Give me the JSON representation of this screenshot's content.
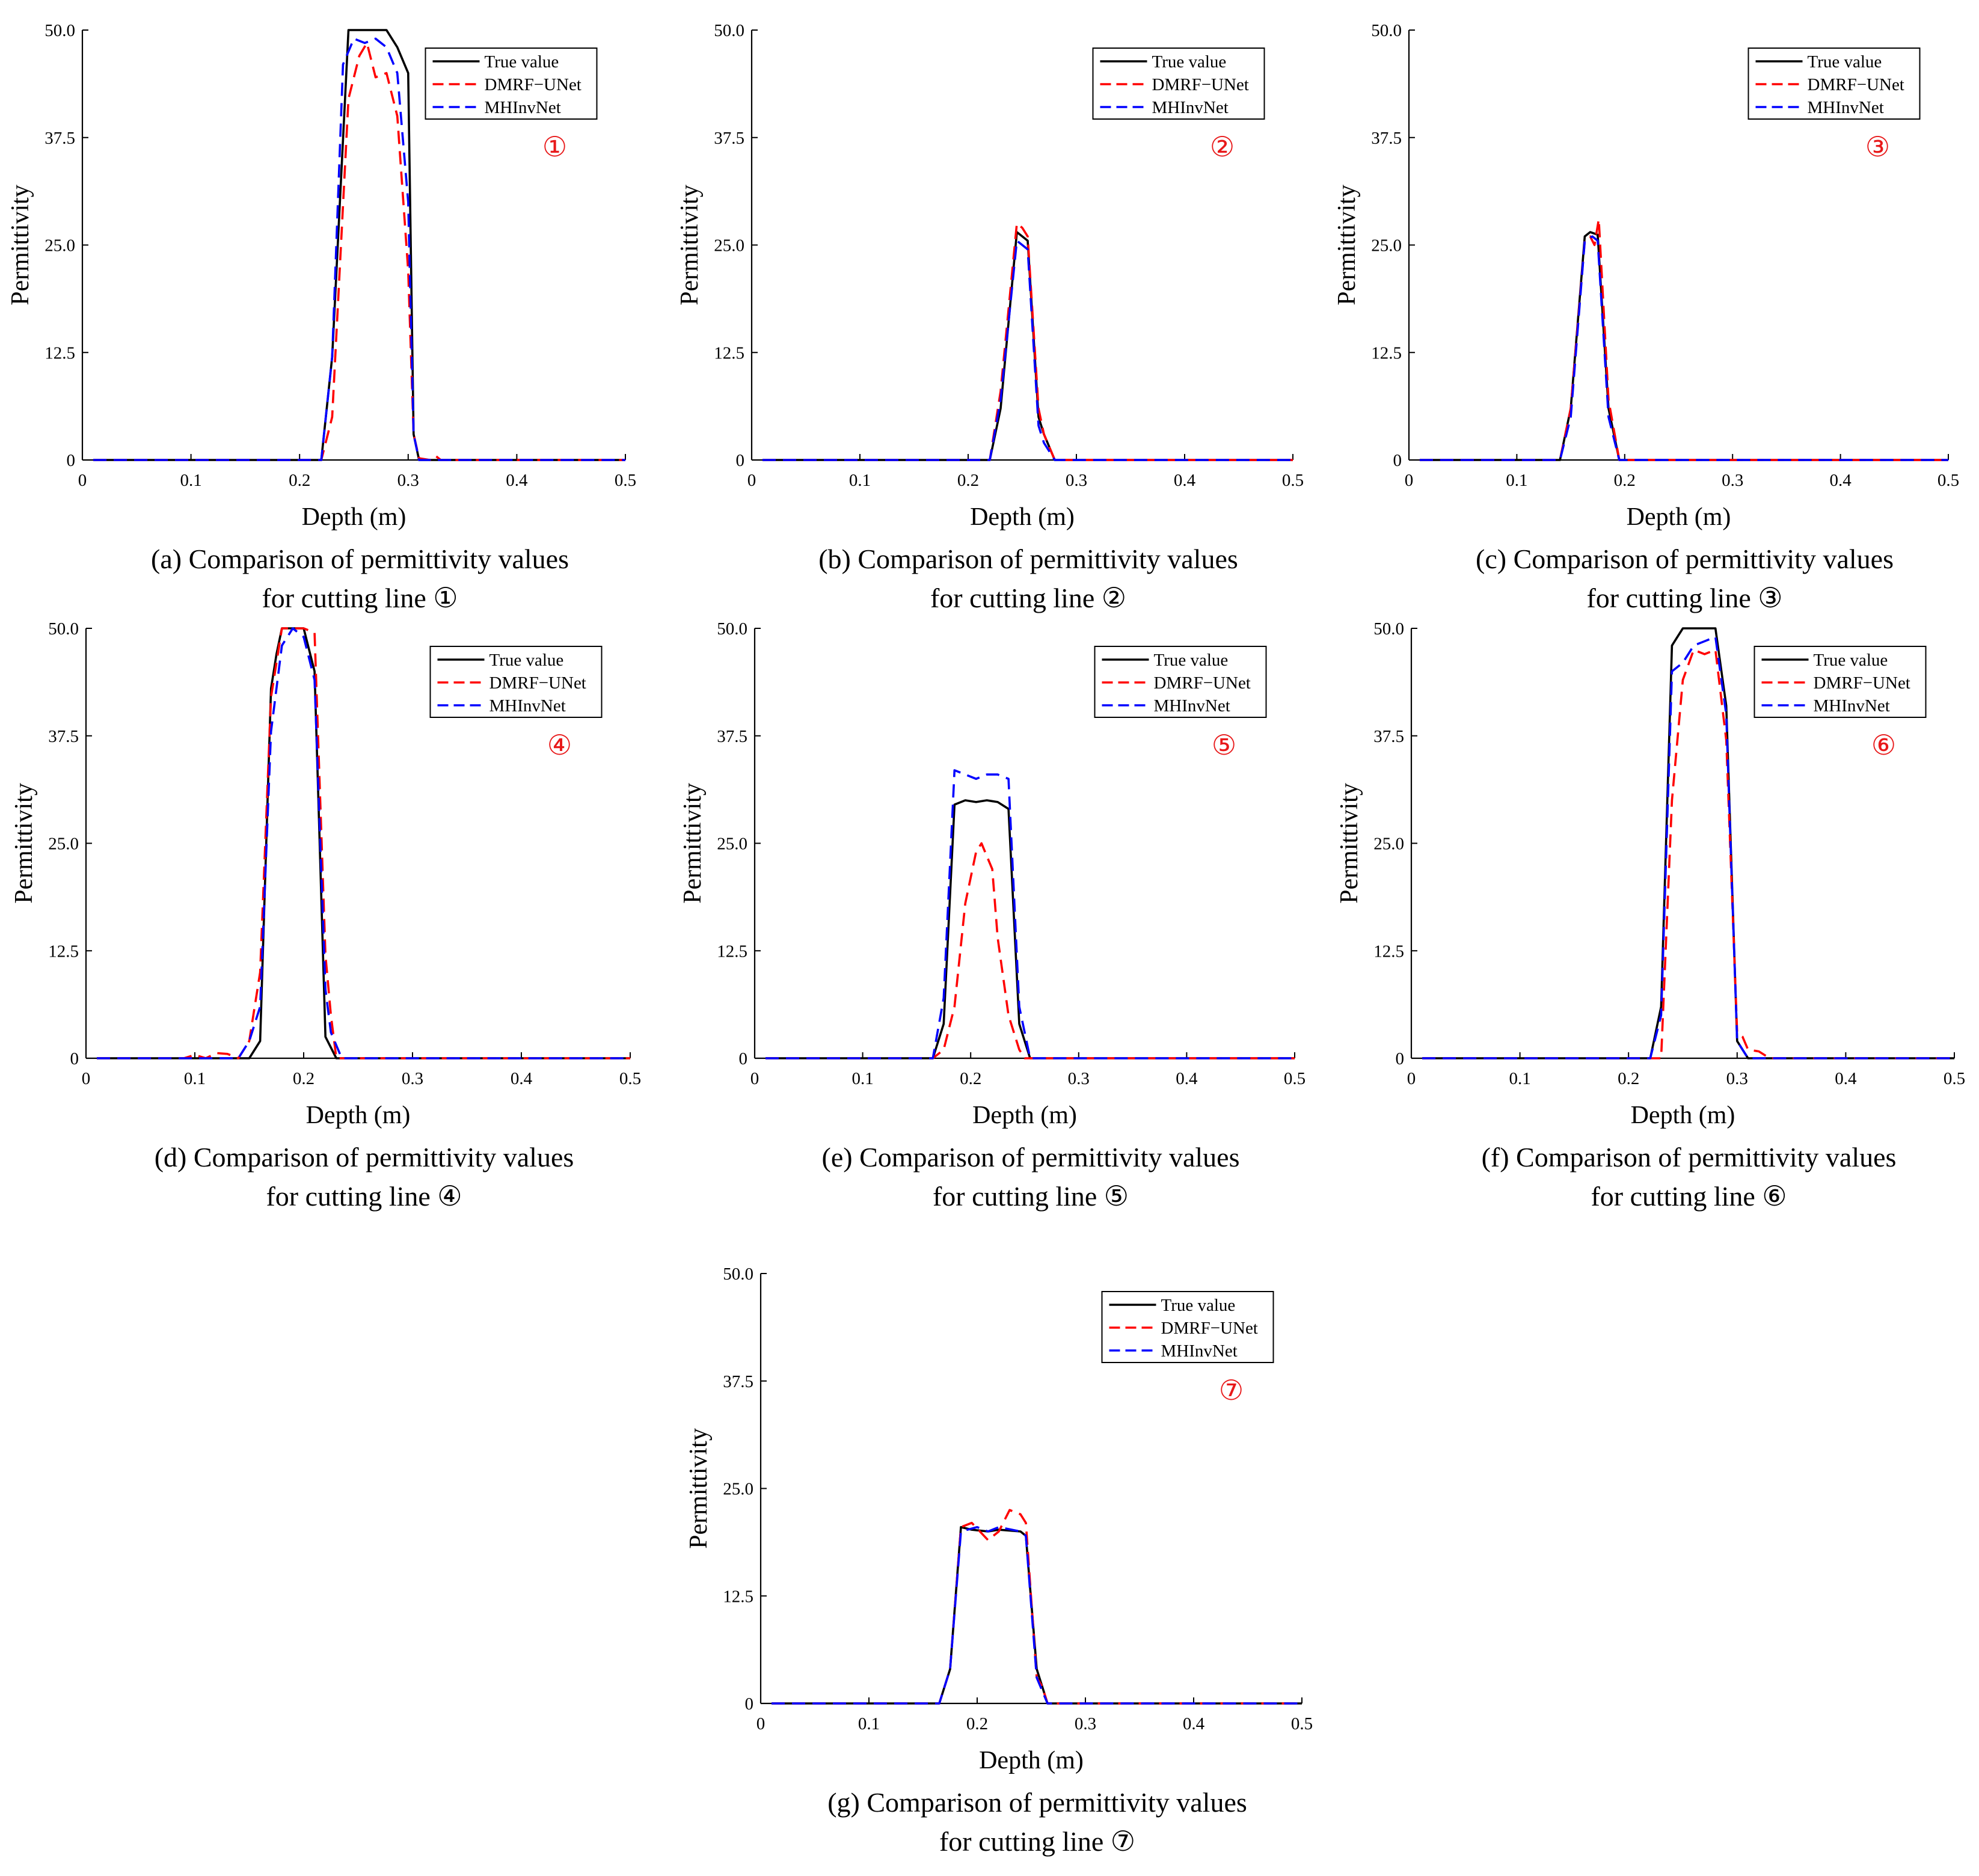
{
  "figure": {
    "xlabel": "Depth (m)",
    "ylabel": "Permittivity",
    "xlim": [
      0,
      0.5
    ],
    "ylim": [
      0,
      50
    ],
    "xticks": [
      0,
      0.1,
      0.2,
      0.3,
      0.4,
      0.5
    ],
    "xtick_labels": [
      "0",
      "0.1",
      "0.2",
      "0.3",
      "0.4",
      "0.5"
    ],
    "yticks": [
      0,
      12.5,
      25,
      37.5,
      50
    ],
    "ytick_labels": [
      "0",
      "12.5",
      "25.0",
      "37.5",
      "50.0"
    ],
    "legend": [
      "True value",
      "DMRF−UNet",
      "MHInvNet"
    ],
    "colors": {
      "true": "#000000",
      "dmrf": "#ff0000",
      "mhinv": "#0000ff",
      "marker": "#e8191a"
    },
    "legend_position": "top-right"
  },
  "panels": [
    {
      "id": "a",
      "marker": "①",
      "caption_line1": "(a) Comparison of permittivity values",
      "caption_line2": "for cutting line  ①"
    },
    {
      "id": "b",
      "marker": "②",
      "caption_line1": "(b) Comparison of permittivity values",
      "caption_line2": "for cutting line  ②"
    },
    {
      "id": "c",
      "marker": "③",
      "caption_line1": "(c) Comparison of permittivity values",
      "caption_line2": "for cutting line  ③"
    },
    {
      "id": "d",
      "marker": "④",
      "caption_line1": "(d) Comparison of permittivity values",
      "caption_line2": "for cutting line  ④"
    },
    {
      "id": "e",
      "marker": "⑤",
      "caption_line1": "(e) Comparison of permittivity values",
      "caption_line2": "for cutting line  ⑤"
    },
    {
      "id": "f",
      "marker": "⑥",
      "caption_line1": "(f) Comparison of permittivity values",
      "caption_line2": "for cutting line  ⑥"
    },
    {
      "id": "g",
      "marker": "⑦",
      "caption_line1": "(g) Comparison of permittivity values",
      "caption_line2": "for cutting line ⑦"
    }
  ],
  "chart_data": [
    {
      "type": "line",
      "panel": "a",
      "title": "",
      "xlabel": "Depth (m)",
      "ylabel": "Permittivity",
      "xlim": [
        0,
        0.5
      ],
      "ylim": [
        0,
        50
      ],
      "series": [
        {
          "name": "True value",
          "x": [
            0.01,
            0.22,
            0.23,
            0.245,
            0.255,
            0.28,
            0.29,
            0.3,
            0.305,
            0.31,
            0.5
          ],
          "y": [
            0,
            0,
            12,
            50,
            50,
            50,
            48,
            45,
            3,
            0,
            0
          ]
        },
        {
          "name": "DMRF−UNet",
          "x": [
            0.01,
            0.22,
            0.23,
            0.245,
            0.255,
            0.262,
            0.27,
            0.28,
            0.29,
            0.3,
            0.305,
            0.31,
            0.32,
            0.325,
            0.33,
            0.5
          ],
          "y": [
            0,
            0,
            5,
            42,
            47,
            48.5,
            44.5,
            45,
            40,
            22,
            3,
            0.2,
            0,
            0.5,
            0,
            0
          ]
        },
        {
          "name": "MHInvNet",
          "x": [
            0.01,
            0.22,
            0.23,
            0.24,
            0.25,
            0.26,
            0.27,
            0.28,
            0.29,
            0.3,
            0.305,
            0.31,
            0.5
          ],
          "y": [
            0,
            0,
            12,
            46,
            49,
            48.5,
            49,
            48,
            45,
            30,
            3,
            0,
            0
          ]
        }
      ]
    },
    {
      "type": "line",
      "panel": "b",
      "title": "",
      "xlabel": "Depth (m)",
      "ylabel": "Permittivity",
      "xlim": [
        0,
        0.5
      ],
      "ylim": [
        0,
        50
      ],
      "series": [
        {
          "name": "True value",
          "x": [
            0.01,
            0.22,
            0.23,
            0.245,
            0.255,
            0.265,
            0.27,
            0.28,
            0.5
          ],
          "y": [
            0,
            0,
            6,
            26.5,
            25.5,
            5,
            3,
            0,
            0
          ]
        },
        {
          "name": "DMRF−UNet",
          "x": [
            0.01,
            0.22,
            0.23,
            0.245,
            0.25,
            0.255,
            0.265,
            0.27,
            0.28,
            0.5
          ],
          "y": [
            0,
            0,
            8,
            27.5,
            27,
            26,
            6,
            3,
            0,
            0
          ]
        },
        {
          "name": "MHInvNet",
          "x": [
            0.01,
            0.22,
            0.23,
            0.245,
            0.255,
            0.265,
            0.27,
            0.28,
            0.5
          ],
          "y": [
            0,
            0,
            7,
            25.5,
            24.5,
            4,
            2,
            0,
            0
          ]
        }
      ]
    },
    {
      "type": "line",
      "panel": "c",
      "title": "",
      "xlabel": "Depth (m)",
      "ylabel": "Permittivity",
      "xlim": [
        0,
        0.5
      ],
      "ylim": [
        0,
        50
      ],
      "series": [
        {
          "name": "True value",
          "x": [
            0.01,
            0.14,
            0.15,
            0.163,
            0.168,
            0.175,
            0.185,
            0.195,
            0.5
          ],
          "y": [
            0,
            0,
            6,
            26,
            26.5,
            26.2,
            6,
            0,
            0
          ]
        },
        {
          "name": "DMRF−UNet",
          "x": [
            0.01,
            0.14,
            0.15,
            0.163,
            0.168,
            0.172,
            0.176,
            0.185,
            0.195,
            0.5
          ],
          "y": [
            0,
            0,
            6,
            25.5,
            26,
            25,
            28,
            7,
            0,
            0
          ]
        },
        {
          "name": "MHInvNet",
          "x": [
            0.01,
            0.14,
            0.15,
            0.163,
            0.17,
            0.175,
            0.185,
            0.195,
            0.5
          ],
          "y": [
            0,
            0,
            5,
            25.5,
            26,
            25.5,
            5,
            0,
            0
          ]
        }
      ]
    },
    {
      "type": "line",
      "panel": "d",
      "title": "",
      "xlabel": "Depth (m)",
      "ylabel": "Permittivity",
      "xlim": [
        0,
        0.5
      ],
      "ylim": [
        0,
        50
      ],
      "series": [
        {
          "name": "True value",
          "x": [
            0.01,
            0.14,
            0.15,
            0.16,
            0.17,
            0.175,
            0.18,
            0.2,
            0.21,
            0.22,
            0.23,
            0.5
          ],
          "y": [
            0,
            0,
            0,
            2,
            43,
            47,
            50,
            50,
            45,
            2.5,
            0,
            0
          ]
        },
        {
          "name": "DMRF−UNet",
          "x": [
            0.01,
            0.09,
            0.1,
            0.11,
            0.12,
            0.13,
            0.14,
            0.15,
            0.16,
            0.17,
            0.18,
            0.2,
            0.21,
            0.22,
            0.225,
            0.23,
            0.5
          ],
          "y": [
            0,
            0,
            0.4,
            0,
            0.6,
            0.5,
            0,
            2,
            10,
            42,
            50,
            50,
            49.5,
            12,
            5,
            0,
            0
          ]
        },
        {
          "name": "MHInvNet",
          "x": [
            0.01,
            0.14,
            0.15,
            0.16,
            0.17,
            0.18,
            0.19,
            0.2,
            0.21,
            0.22,
            0.225,
            0.235,
            0.5
          ],
          "y": [
            0,
            0,
            2,
            6,
            38,
            48,
            50,
            49,
            44,
            8,
            3,
            0,
            0
          ]
        }
      ]
    },
    {
      "type": "line",
      "panel": "e",
      "title": "",
      "xlabel": "Depth (m)",
      "ylabel": "Permittivity",
      "xlim": [
        0,
        0.5
      ],
      "ylim": [
        0,
        50
      ],
      "series": [
        {
          "name": "True value",
          "x": [
            0.01,
            0.165,
            0.175,
            0.185,
            0.195,
            0.205,
            0.215,
            0.225,
            0.235,
            0.245,
            0.255,
            0.5
          ],
          "y": [
            0,
            0,
            4,
            29.5,
            30,
            29.8,
            30,
            29.8,
            29,
            4,
            0,
            0
          ]
        },
        {
          "name": "DMRF−UNet",
          "x": [
            0.01,
            0.165,
            0.175,
            0.185,
            0.195,
            0.205,
            0.21,
            0.215,
            0.22,
            0.225,
            0.235,
            0.245,
            0.25,
            0.5
          ],
          "y": [
            0,
            0,
            1,
            6,
            18,
            24,
            25,
            23.5,
            22,
            14,
            5,
            1,
            0,
            0
          ]
        },
        {
          "name": "MHInvNet",
          "x": [
            0.01,
            0.165,
            0.175,
            0.185,
            0.195,
            0.205,
            0.215,
            0.225,
            0.235,
            0.245,
            0.255,
            0.5
          ],
          "y": [
            0,
            0,
            7,
            33.5,
            33,
            32.5,
            33,
            33,
            32.5,
            6,
            0,
            0
          ]
        }
      ]
    },
    {
      "type": "line",
      "panel": "f",
      "title": "",
      "xlabel": "Depth (m)",
      "ylabel": "Permittivity",
      "xlim": [
        0,
        0.5
      ],
      "ylim": [
        0,
        50
      ],
      "series": [
        {
          "name": "True value",
          "x": [
            0.01,
            0.22,
            0.23,
            0.24,
            0.25,
            0.26,
            0.28,
            0.29,
            0.3,
            0.305,
            0.31,
            0.5
          ],
          "y": [
            0,
            0,
            6,
            48,
            50,
            50,
            50,
            41,
            2,
            1,
            0,
            0
          ]
        },
        {
          "name": "DMRF−UNet",
          "x": [
            0.01,
            0.23,
            0.24,
            0.25,
            0.26,
            0.27,
            0.28,
            0.29,
            0.3,
            0.305,
            0.31,
            0.32,
            0.33,
            0.5
          ],
          "y": [
            0,
            0,
            30,
            44,
            47.5,
            47,
            47.5,
            37,
            3,
            2.5,
            1,
            0.8,
            0,
            0
          ]
        },
        {
          "name": "MHInvNet",
          "x": [
            0.01,
            0.22,
            0.23,
            0.24,
            0.25,
            0.26,
            0.27,
            0.28,
            0.29,
            0.3,
            0.31,
            0.5
          ],
          "y": [
            0,
            0,
            5,
            45,
            46,
            48,
            48.5,
            49,
            40,
            2,
            0,
            0
          ]
        }
      ]
    },
    {
      "type": "line",
      "panel": "g",
      "title": "",
      "xlabel": "Depth (m)",
      "ylabel": "Permittivity",
      "xlim": [
        0,
        0.5
      ],
      "ylim": [
        0,
        50
      ],
      "series": [
        {
          "name": "True value",
          "x": [
            0.01,
            0.165,
            0.175,
            0.185,
            0.195,
            0.21,
            0.22,
            0.24,
            0.245,
            0.255,
            0.265,
            0.5
          ],
          "y": [
            0,
            0,
            4,
            20.5,
            20.2,
            20,
            20.2,
            20,
            19.5,
            4,
            0,
            0
          ]
        },
        {
          "name": "DMRF−UNet",
          "x": [
            0.01,
            0.165,
            0.175,
            0.185,
            0.195,
            0.21,
            0.22,
            0.23,
            0.24,
            0.245,
            0.255,
            0.26,
            0.265,
            0.5
          ],
          "y": [
            0,
            0,
            4,
            20.5,
            21,
            19,
            20,
            22.5,
            22,
            21,
            3,
            2,
            0,
            0
          ]
        },
        {
          "name": "MHInvNet",
          "x": [
            0.01,
            0.165,
            0.175,
            0.185,
            0.2,
            0.21,
            0.22,
            0.24,
            0.245,
            0.255,
            0.265,
            0.5
          ],
          "y": [
            0,
            0,
            4,
            20,
            20.5,
            20,
            20.5,
            20,
            19.5,
            3,
            0,
            0
          ]
        }
      ]
    }
  ]
}
